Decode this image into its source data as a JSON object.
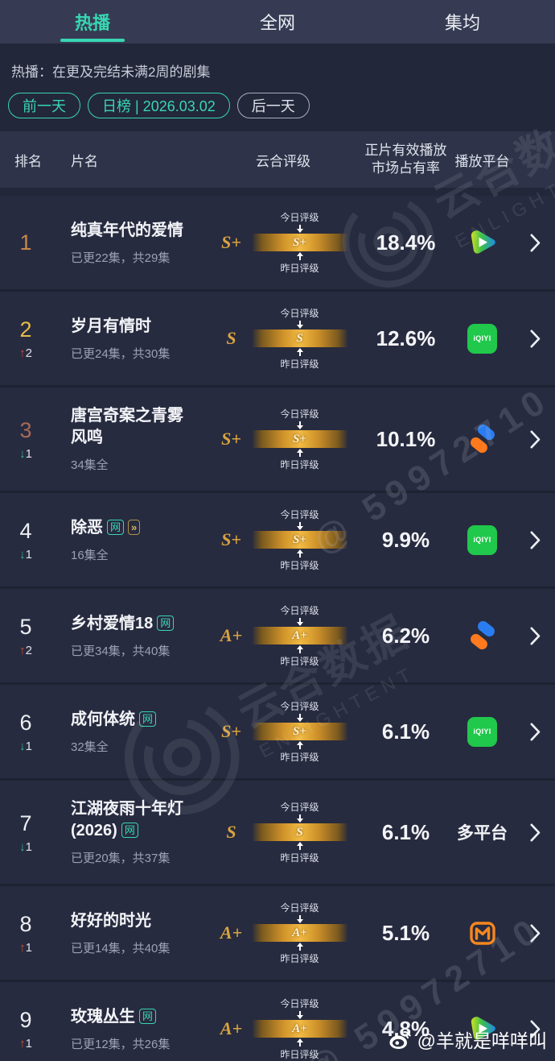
{
  "tabs": [
    {
      "label": "热播",
      "active": true
    },
    {
      "label": "全网",
      "active": false
    },
    {
      "label": "集均",
      "active": false
    }
  ],
  "subtitle": "热播：在更及完结未满2周的剧集",
  "date_nav": {
    "prev": "前一天",
    "current": "日榜 | 2026.03.02",
    "next": "后一天"
  },
  "table": {
    "headers": {
      "rank": "排名",
      "title": "片名",
      "rating": "云合评级",
      "share_line1": "正片有效播放",
      "share_line2": "市场占有率",
      "platform": "播放平台"
    }
  },
  "rating_labels": {
    "today": "今日评级",
    "yesterday": "昨日评级"
  },
  "badge_labels": {
    "net": "网",
    "ff": "»"
  },
  "platform_icon_texts": {
    "iqiyi": "iQIYI"
  },
  "rows": [
    {
      "rank": "1",
      "rank_color": "#c8854a",
      "change": null,
      "title": "纯真年代的爱情",
      "badges": [],
      "episodes": "已更22集，共29集",
      "rating": "S+",
      "share": "18.4%",
      "platform": "tencent-video"
    },
    {
      "rank": "2",
      "rank_color": "#e7bc49",
      "change": {
        "dir": "up",
        "value": "2"
      },
      "title": "岁月有情时",
      "badges": [],
      "episodes": "已更24集，共30集",
      "rating": "S",
      "share": "12.6%",
      "platform": "iqiyi"
    },
    {
      "rank": "3",
      "rank_color": "#a76a58",
      "change": {
        "dir": "down",
        "value": "1"
      },
      "title": "唐宫奇案之青雾风鸣",
      "badges": [],
      "episodes": "34集全",
      "rating": "S+",
      "share": "10.1%",
      "platform": "youku"
    },
    {
      "rank": "4",
      "rank_color": "",
      "change": {
        "dir": "down",
        "value": "1"
      },
      "title": "除恶",
      "badges": [
        "net",
        "ff"
      ],
      "episodes": "16集全",
      "rating": "S+",
      "share": "9.9%",
      "platform": "iqiyi"
    },
    {
      "rank": "5",
      "rank_color": "",
      "change": {
        "dir": "up",
        "value": "2"
      },
      "title": "乡村爱情18",
      "badges": [
        "net"
      ],
      "episodes": "已更34集，共40集",
      "rating": "A+",
      "share": "6.2%",
      "platform": "youku"
    },
    {
      "rank": "6",
      "rank_color": "",
      "change": {
        "dir": "down",
        "value": "1"
      },
      "title": "成何体统",
      "badges": [
        "net"
      ],
      "episodes": "32集全",
      "rating": "S+",
      "share": "6.1%",
      "platform": "iqiyi"
    },
    {
      "rank": "7",
      "rank_color": "",
      "change": {
        "dir": "down",
        "value": "1"
      },
      "title": "江湖夜雨十年灯(2026)",
      "badges": [
        "net"
      ],
      "episodes": "已更20集，共37集",
      "rating": "S",
      "share": "6.1%",
      "platform": "multi",
      "platform_label": "多平台"
    },
    {
      "rank": "8",
      "rank_color": "",
      "change": {
        "dir": "up",
        "value": "1"
      },
      "title": "好好的时光",
      "badges": [],
      "episodes": "已更14集，共40集",
      "rating": "A+",
      "share": "5.1%",
      "platform": "mango-tv"
    },
    {
      "rank": "9",
      "rank_color": "",
      "change": {
        "dir": "up",
        "value": "1"
      },
      "title": "玫瑰丛生",
      "badges": [
        "net"
      ],
      "episodes": "已更12集，共26集",
      "rating": "A+",
      "share": "4.8%",
      "platform": "tencent-video"
    }
  ],
  "watermarks": {
    "brand_cn": "云合数据",
    "brand_en": "ENLIGHTENT",
    "uid": "@ 59972710",
    "credit": "@羊就是咩咩叫"
  },
  "colors": {
    "accent": "#38d6b2",
    "gold": "#d9a33f",
    "bar_gold": "#f1ba43",
    "up_red": "#d84b2e",
    "down_green": "#2cbd92",
    "iqiyi_green": "#20c84b",
    "mango_orange": "#f5871f",
    "youku_blue": "#2a7df0",
    "youku_orange": "#ff7a1e"
  }
}
